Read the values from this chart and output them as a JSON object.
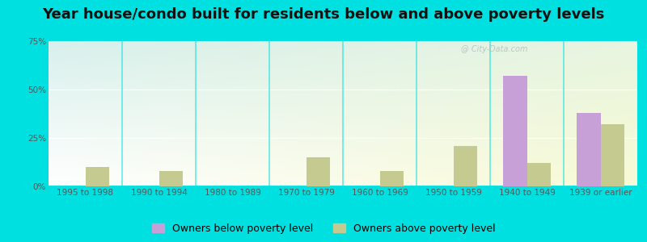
{
  "title": "Year house/condo built for residents below and above poverty levels",
  "categories": [
    "1995 to 1998",
    "1990 to 1994",
    "1980 to 1989",
    "1970 to 1979",
    "1960 to 1969",
    "1950 to 1959",
    "1940 to 1949",
    "1939 or earlier"
  ],
  "below_poverty": [
    0,
    0,
    0,
    0,
    0,
    0,
    57,
    38
  ],
  "above_poverty": [
    10,
    8,
    0,
    15,
    8,
    21,
    12,
    32
  ],
  "below_color": "#c8a0d8",
  "above_color": "#c5ca90",
  "ylim": [
    0,
    75
  ],
  "yticks": [
    0,
    25,
    50,
    75
  ],
  "ytick_labels": [
    "0%",
    "25%",
    "50%",
    "75%"
  ],
  "outer_bg": "#00e0e0",
  "plot_bg_left": "#cceee8",
  "plot_bg_right": "#e8f5e0",
  "legend_below_label": "Owners below poverty level",
  "legend_above_label": "Owners above poverty level",
  "bar_width": 0.32,
  "title_fontsize": 13,
  "tick_fontsize": 7.5,
  "legend_fontsize": 9,
  "watermark": "@ City-Data.com"
}
